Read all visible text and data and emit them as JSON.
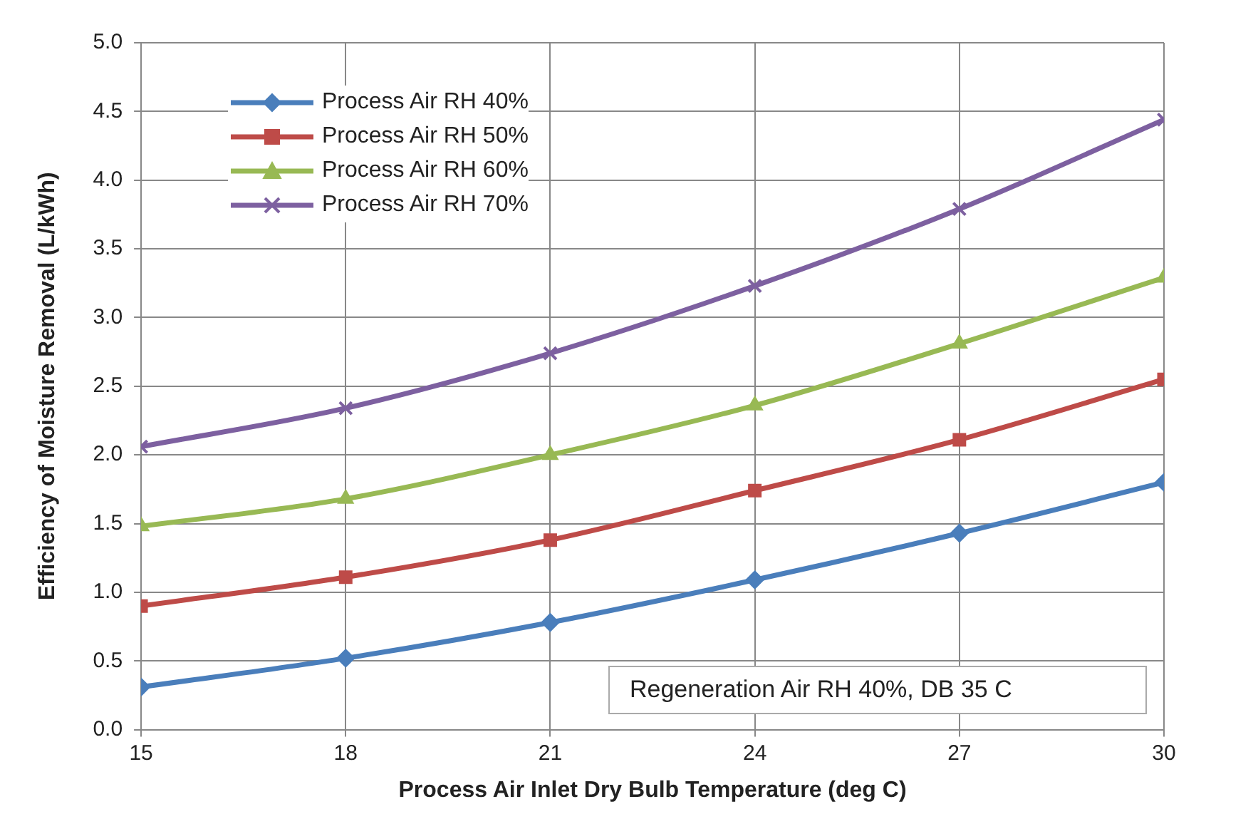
{
  "chart_data": {
    "type": "line",
    "xlabel": "Process Air Inlet Dry Bulb Temperature (deg C)",
    "ylabel": "Efficiency of Moisture Removal (L/kWh)",
    "x": [
      15,
      18,
      21,
      24,
      27,
      30
    ],
    "series": [
      {
        "name": "Process Air RH 40%",
        "color": "#4a7ebb",
        "marker": "diamond",
        "values": [
          0.31,
          0.52,
          0.78,
          1.09,
          1.43,
          1.8
        ]
      },
      {
        "name": "Process Air RH 50%",
        "color": "#be4b48",
        "marker": "square",
        "values": [
          0.9,
          1.11,
          1.38,
          1.74,
          2.11,
          2.55
        ]
      },
      {
        "name": "Process Air RH 60%",
        "color": "#98b954",
        "marker": "triangle",
        "values": [
          1.48,
          1.68,
          2.0,
          2.36,
          2.81,
          3.29
        ]
      },
      {
        "name": "Process Air RH 70%",
        "color": "#7d60a0",
        "marker": "cross",
        "values": [
          2.06,
          2.34,
          2.74,
          3.23,
          3.79,
          4.44
        ]
      }
    ],
    "xlim": [
      15,
      30
    ],
    "xticks": [
      15,
      18,
      21,
      24,
      27,
      30
    ],
    "ylim": [
      0,
      5
    ],
    "yticks": [
      {
        "value": 0,
        "label": "0.0"
      },
      {
        "value": 0.5,
        "label": "0.5"
      },
      {
        "value": 1,
        "label": "1.0"
      },
      {
        "value": 1.5,
        "label": "1.5"
      },
      {
        "value": 2,
        "label": "2.0"
      },
      {
        "value": 2.5,
        "label": "2.5"
      },
      {
        "value": 3,
        "label": "3.0"
      },
      {
        "value": 3.5,
        "label": "3.5"
      },
      {
        "value": 4,
        "label": "4.0"
      },
      {
        "value": 4.5,
        "label": "4.5"
      },
      {
        "value": 5,
        "label": "5.0"
      }
    ],
    "grid": true,
    "legend": "top left",
    "line_style": "solid",
    "annotations": [
      "Regeneration Air RH 40%, DB 35 C"
    ]
  }
}
